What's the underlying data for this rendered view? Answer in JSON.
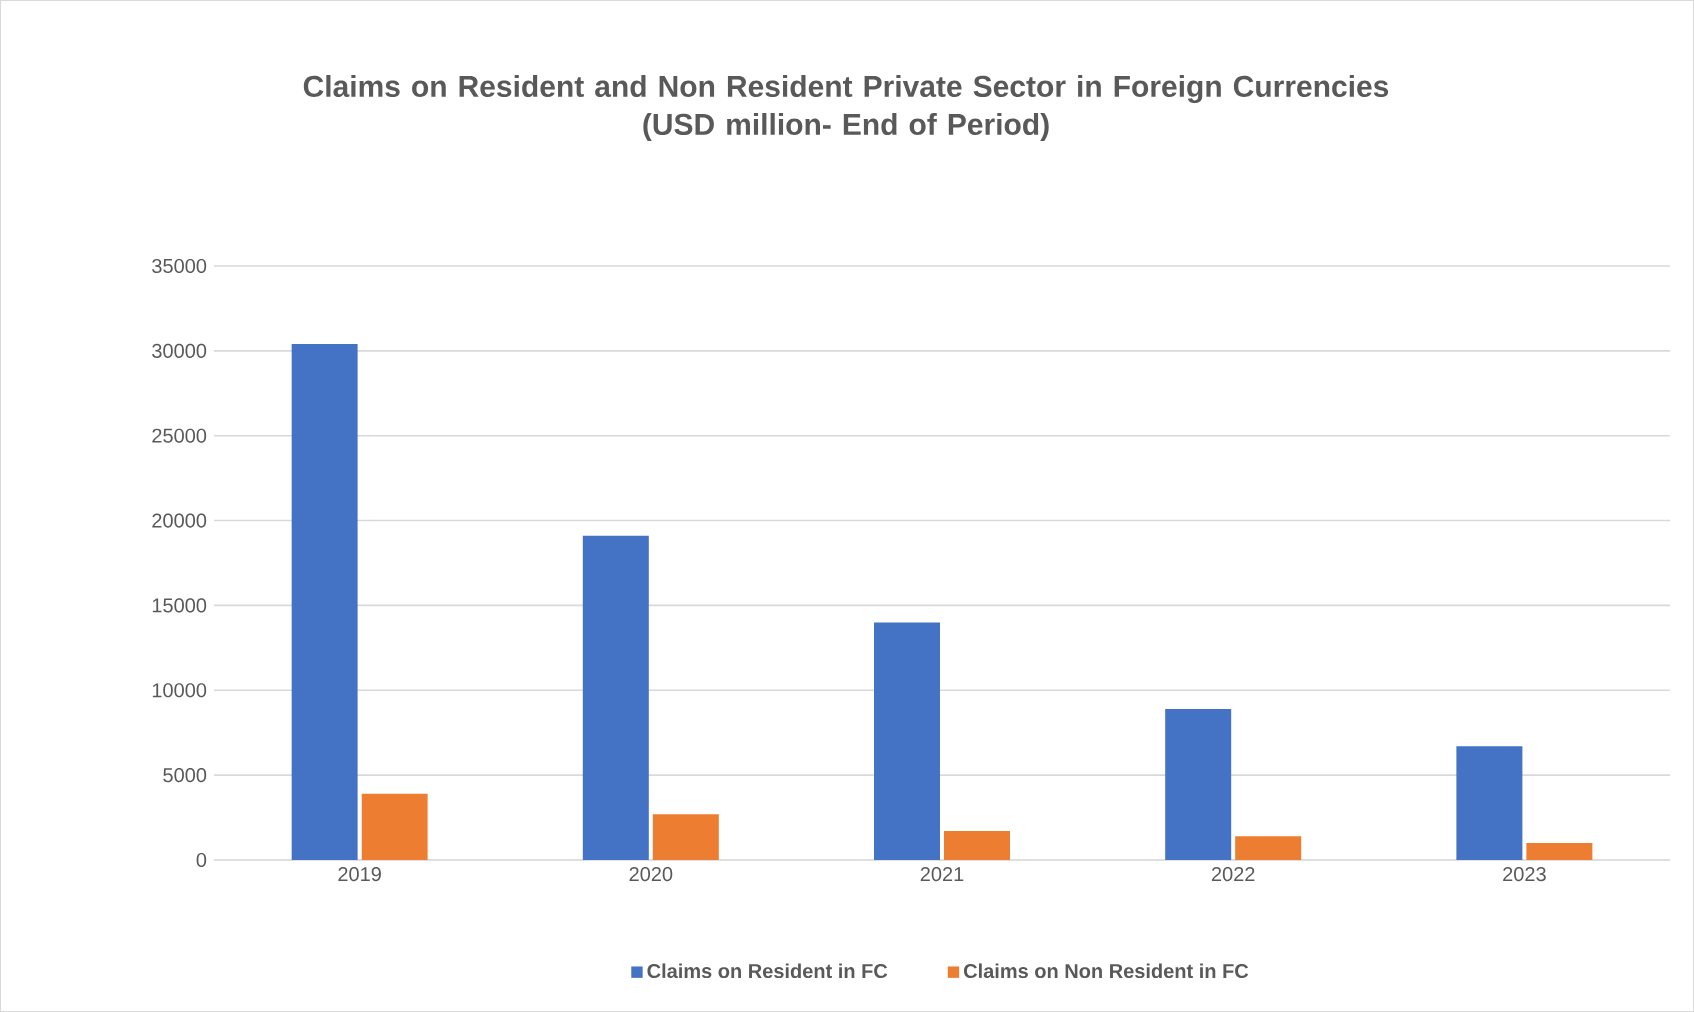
{
  "chart_data": {
    "type": "bar",
    "title": "Claims on Resident and Non Resident Private Sector in Foreign Currencies",
    "subtitle": "(USD million- End of Period)",
    "categories": [
      "2019",
      "2020",
      "2021",
      "2022",
      "2023"
    ],
    "series": [
      {
        "name": "Claims on Resident in FC",
        "color": "#4472c4",
        "values": [
          30400,
          19100,
          14000,
          8900,
          6700
        ]
      },
      {
        "name": "Claims on Non Resident in FC",
        "color": "#ed7d31",
        "values": [
          3900,
          2700,
          1700,
          1400,
          1000
        ]
      }
    ],
    "ylim": [
      0,
      35000
    ],
    "yticks": [
      0,
      5000,
      10000,
      15000,
      20000,
      25000,
      30000,
      35000
    ],
    "grid": "y",
    "legend": "bottom"
  }
}
